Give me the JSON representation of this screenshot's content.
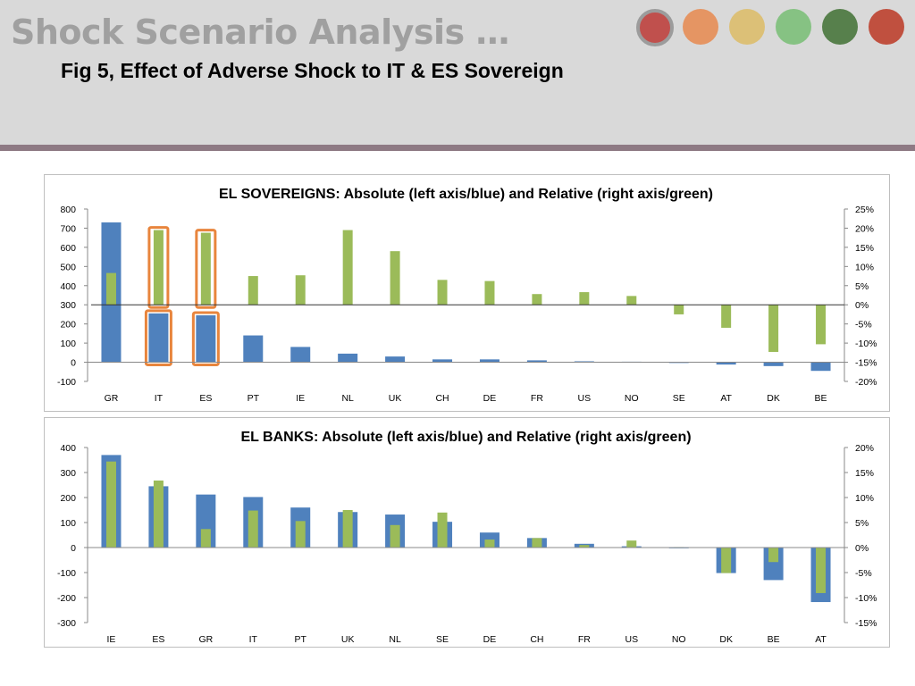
{
  "slide": {
    "title": "Shock Scenario Analysis …",
    "subtitle": "Fig 5, Effect of Adverse Shock to IT & ES Sovereign"
  },
  "nav_dots": [
    {
      "name": "nav-dot-1",
      "color": "#c0504d"
    },
    {
      "name": "nav-dot-2",
      "color": "#e59563"
    },
    {
      "name": "nav-dot-3",
      "color": "#dcc077"
    },
    {
      "name": "nav-dot-4",
      "color": "#86c283"
    },
    {
      "name": "nav-dot-5",
      "color": "#57804c"
    },
    {
      "name": "nav-dot-6",
      "color": "#c0503f"
    }
  ],
  "colors": {
    "absolute": "#4f81bd",
    "relative": "#9bbb59",
    "highlight": "#e8853d",
    "header_rule": "#8e7a84"
  },
  "chart_data": [
    {
      "type": "bar",
      "title": "EL SOVEREIGNS: Absolute (left axis/blue) and Relative (right axis/green)",
      "categories": [
        "GR",
        "IT",
        "ES",
        "PT",
        "IE",
        "NL",
        "UK",
        "CH",
        "DE",
        "FR",
        "US",
        "NO",
        "SE",
        "AT",
        "DK",
        "BE"
      ],
      "series": [
        {
          "axis": "left",
          "color": "#4f81bd",
          "values": [
            730,
            255,
            245,
            140,
            80,
            45,
            30,
            15,
            15,
            10,
            5,
            3,
            -3,
            -12,
            -20,
            -45
          ]
        },
        {
          "axis": "right",
          "color": "#9bbb59",
          "values": [
            0.083,
            0.195,
            0.188,
            0.075,
            0.077,
            0.195,
            0.14,
            0.065,
            0.062,
            0.028,
            0.033,
            0.023,
            -0.025,
            -0.06,
            -0.123,
            -0.103
          ]
        }
      ],
      "left_axis": {
        "min": -100,
        "max": 800,
        "ticks": [
          "800",
          "700",
          "600",
          "500",
          "400",
          "300",
          "200",
          "100",
          "0",
          "-100"
        ]
      },
      "right_axis": {
        "min": -0.2,
        "max": 0.25,
        "ticks": [
          "25%",
          "20%",
          "15%",
          "10%",
          "5%",
          "0%",
          "-5%",
          "-10%",
          "-15%",
          "-20%"
        ]
      },
      "highlighted_categories": [
        "IT",
        "ES"
      ]
    },
    {
      "type": "bar",
      "title": "EL BANKS: Absolute (left axis/blue) and Relative (right axis/green)",
      "categories": [
        "IE",
        "ES",
        "GR",
        "IT",
        "PT",
        "UK",
        "NL",
        "SE",
        "DE",
        "CH",
        "FR",
        "US",
        "NO",
        "DK",
        "BE",
        "AT"
      ],
      "series": [
        {
          "axis": "left",
          "color": "#4f81bd",
          "values": [
            370,
            245,
            212,
            202,
            160,
            142,
            132,
            103,
            60,
            38,
            15,
            5,
            0,
            -102,
            -130,
            -218
          ]
        },
        {
          "axis": "right",
          "color": "#9bbb59",
          "values": [
            0.172,
            0.134,
            0.037,
            0.074,
            0.053,
            0.075,
            0.045,
            0.07,
            0.016,
            0.019,
            0.005,
            0.014,
            0.001,
            -0.051,
            -0.029,
            -0.091
          ]
        }
      ],
      "left_axis": {
        "min": -300,
        "max": 400,
        "ticks": [
          "400",
          "300",
          "200",
          "100",
          "0",
          "-100",
          "-200",
          "-300"
        ]
      },
      "right_axis": {
        "min": -0.15,
        "max": 0.2,
        "ticks": [
          "20%",
          "15%",
          "10%",
          "5%",
          "0%",
          "-5%",
          "-10%",
          "-15%"
        ]
      },
      "highlighted_categories": []
    }
  ]
}
